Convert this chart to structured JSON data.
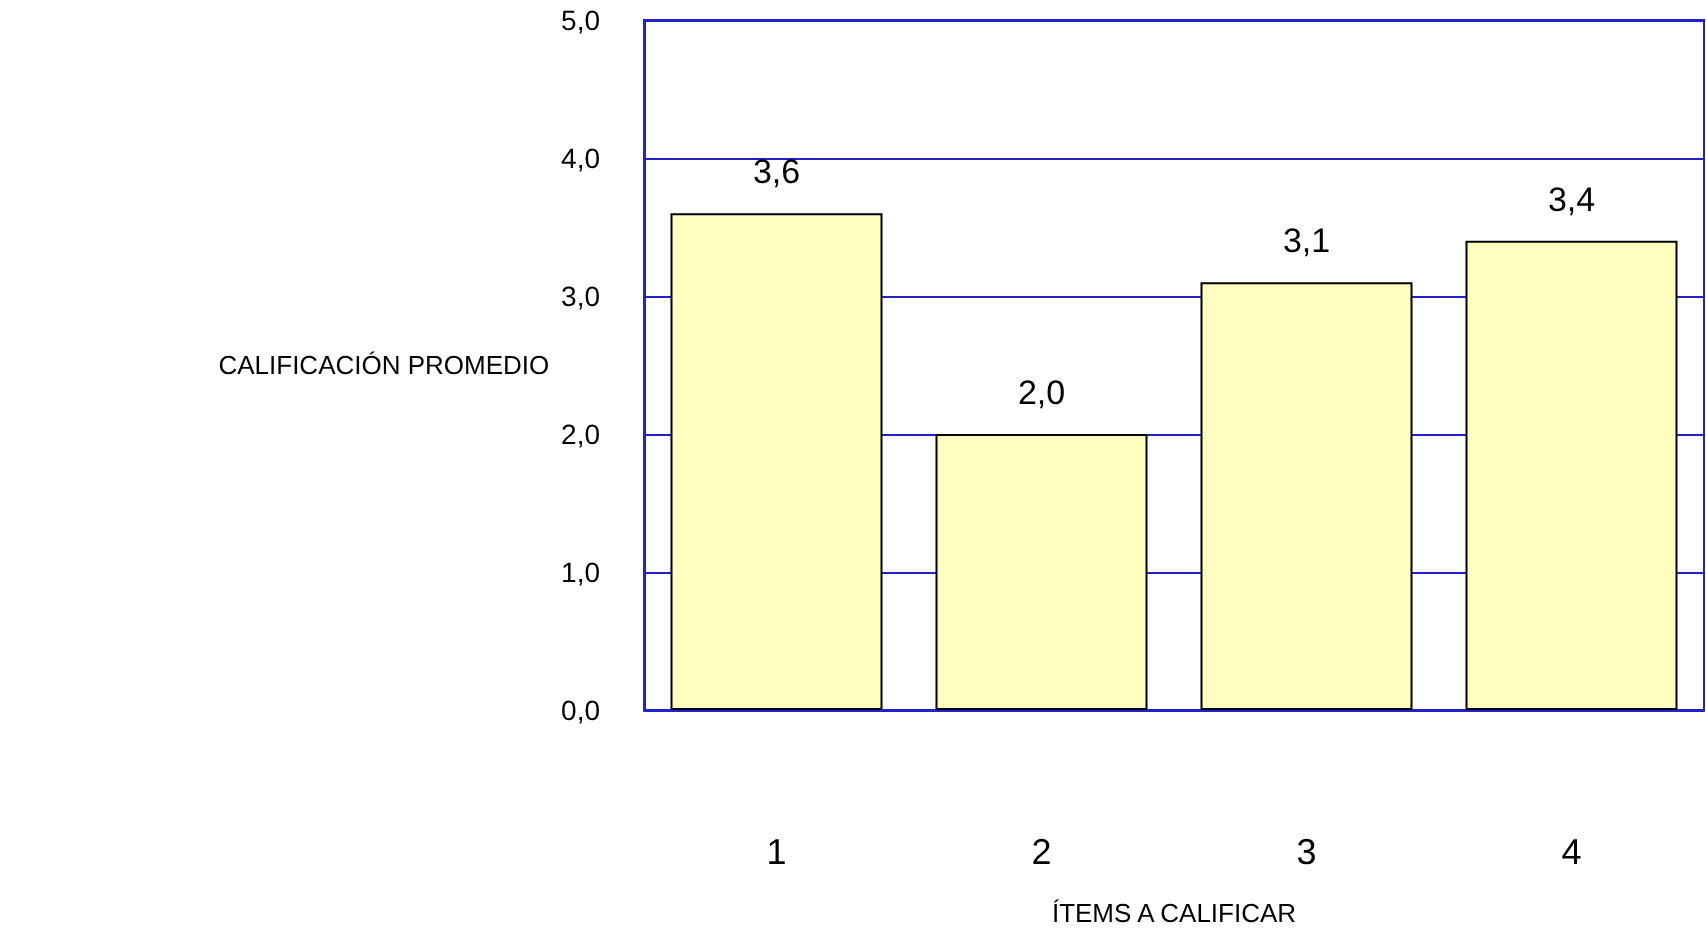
{
  "chart_data": {
    "type": "bar",
    "xlabel": "ÍTEMS A CALIFICAR",
    "ylabel": "CALIFICACIÓN PROMEDIO",
    "categories": [
      "1",
      "2",
      "3",
      "4"
    ],
    "values": [
      3.6,
      2.0,
      3.1,
      3.4
    ],
    "value_labels": [
      "3,6",
      "2,0",
      "3,1",
      "3,4"
    ],
    "color": "#ffffc0",
    "ylim": [
      0,
      5
    ],
    "yticks": [
      {
        "value": 0,
        "label": "0,0"
      },
      {
        "value": 1,
        "label": "1,0"
      },
      {
        "value": 2,
        "label": "2,0"
      },
      {
        "value": 3,
        "label": "3,0"
      },
      {
        "value": 4,
        "label": "4,0"
      },
      {
        "value": 5,
        "label": "5,0"
      }
    ],
    "grid": "y"
  }
}
